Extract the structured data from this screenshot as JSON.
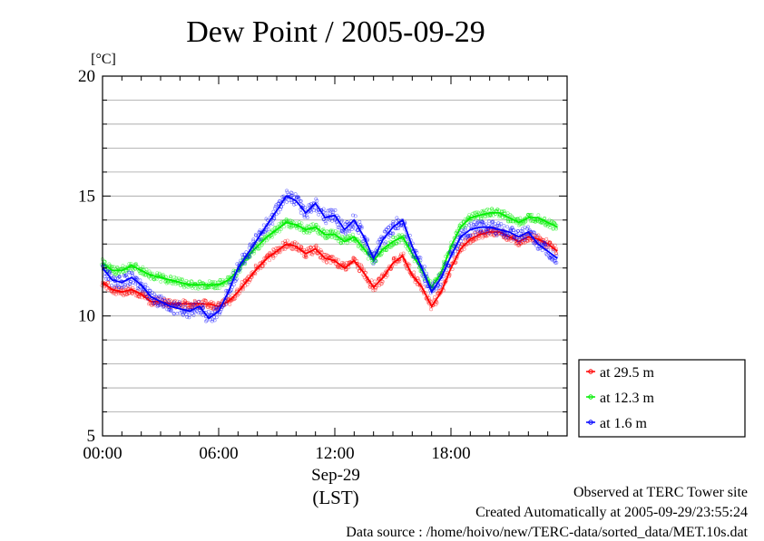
{
  "chart_data": {
    "type": "line",
    "title": "Dew Point / 2005-09-29",
    "yunit": "[°C]",
    "ylim": [
      5,
      20
    ],
    "yticks": [
      {
        "value": 5,
        "label": "5"
      },
      {
        "value": 10,
        "label": "10"
      },
      {
        "value": 15,
        "label": "15"
      },
      {
        "value": 20,
        "label": "20"
      }
    ],
    "xlim": [
      0,
      24
    ],
    "xticks": [
      {
        "value": 0,
        "label": "00:00"
      },
      {
        "value": 6,
        "label": "06:00"
      },
      {
        "value": 12,
        "label": "12:00"
      },
      {
        "value": 18,
        "label": "18:00"
      }
    ],
    "xdate_label": "Sep-29",
    "xlabel": "(LST)",
    "grid": true,
    "legend_position": "right-bottom-outside",
    "series": [
      {
        "name": "at 29.5 m",
        "color": "#ff0000",
        "x": [
          0,
          0.5,
          1,
          1.5,
          2,
          2.5,
          3,
          3.5,
          4,
          4.5,
          5,
          5.5,
          6,
          6.5,
          7,
          7.5,
          8,
          8.5,
          9,
          9.5,
          10,
          10.5,
          11,
          11.5,
          12,
          12.5,
          13,
          13.5,
          14,
          14.5,
          15,
          15.5,
          16,
          16.5,
          17,
          17.5,
          18,
          18.5,
          19,
          19.5,
          20,
          20.5,
          21,
          21.5,
          22,
          22.5,
          23,
          23.5
        ],
        "values": [
          11.4,
          11.1,
          11.0,
          11.1,
          10.9,
          10.6,
          10.6,
          10.5,
          10.5,
          10.5,
          10.5,
          10.5,
          10.4,
          10.6,
          11.0,
          11.5,
          12.0,
          12.4,
          12.7,
          13.0,
          12.9,
          12.6,
          12.8,
          12.4,
          12.3,
          12.0,
          12.3,
          11.8,
          11.2,
          11.6,
          12.2,
          12.5,
          11.7,
          11.2,
          10.4,
          11.0,
          12.0,
          12.8,
          13.2,
          13.4,
          13.5,
          13.5,
          13.3,
          13.1,
          13.3,
          13.2,
          13.0,
          12.7
        ]
      },
      {
        "name": "at 12.3 m",
        "color": "#00ee00",
        "x": [
          0,
          0.5,
          1,
          1.5,
          2,
          2.5,
          3,
          3.5,
          4,
          4.5,
          5,
          5.5,
          6,
          6.5,
          7,
          7.5,
          8,
          8.5,
          9,
          9.5,
          10,
          10.5,
          11,
          11.5,
          12,
          12.5,
          13,
          13.5,
          14,
          14.5,
          15,
          15.5,
          16,
          16.5,
          17,
          17.5,
          18,
          18.5,
          19,
          19.5,
          20,
          20.5,
          21,
          21.5,
          22,
          22.5,
          23,
          23.5
        ],
        "values": [
          12.2,
          11.9,
          11.9,
          12.1,
          11.9,
          11.7,
          11.6,
          11.5,
          11.4,
          11.3,
          11.3,
          11.3,
          11.3,
          11.5,
          11.9,
          12.5,
          12.9,
          13.3,
          13.6,
          13.9,
          13.8,
          13.6,
          13.7,
          13.4,
          13.4,
          13.1,
          13.3,
          12.8,
          12.3,
          12.8,
          13.1,
          13.3,
          12.6,
          11.9,
          11.2,
          11.8,
          12.9,
          13.7,
          14.1,
          14.2,
          14.3,
          14.3,
          14.1,
          13.9,
          14.1,
          14.1,
          13.9,
          13.7
        ]
      },
      {
        "name": "at 1.6 m",
        "color": "#0000ff",
        "x": [
          0,
          0.5,
          1,
          1.5,
          2,
          2.5,
          3,
          3.5,
          4,
          4.5,
          5,
          5.5,
          6,
          6.5,
          7,
          7.5,
          8,
          8.5,
          9,
          9.5,
          10,
          10.5,
          11,
          11.5,
          12,
          12.5,
          13,
          13.5,
          14,
          14.5,
          15,
          15.5,
          16,
          16.5,
          17,
          17.5,
          18,
          18.5,
          19,
          19.5,
          20,
          20.5,
          21,
          21.5,
          22,
          22.5,
          23,
          23.5
        ],
        "values": [
          12.0,
          11.5,
          11.4,
          11.6,
          11.3,
          10.8,
          10.6,
          10.4,
          10.3,
          10.2,
          10.4,
          9.9,
          10.2,
          11.0,
          12.0,
          12.6,
          13.2,
          13.8,
          14.4,
          15.0,
          14.8,
          14.3,
          14.7,
          14.1,
          14.2,
          13.6,
          14.0,
          13.3,
          12.4,
          13.2,
          13.7,
          14.0,
          12.9,
          12.0,
          11.0,
          11.6,
          12.5,
          13.3,
          13.6,
          13.7,
          13.7,
          13.6,
          13.5,
          13.3,
          13.5,
          13.0,
          12.7,
          12.4
        ]
      }
    ]
  },
  "footer": {
    "line1": "Observed at TERC Tower site",
    "line2": "Created Automatically at 2005-09-29/23:55:24",
    "line3": "Data source : /home/hoivo/new/TERC-data/sorted_data/MET.10s.dat"
  }
}
